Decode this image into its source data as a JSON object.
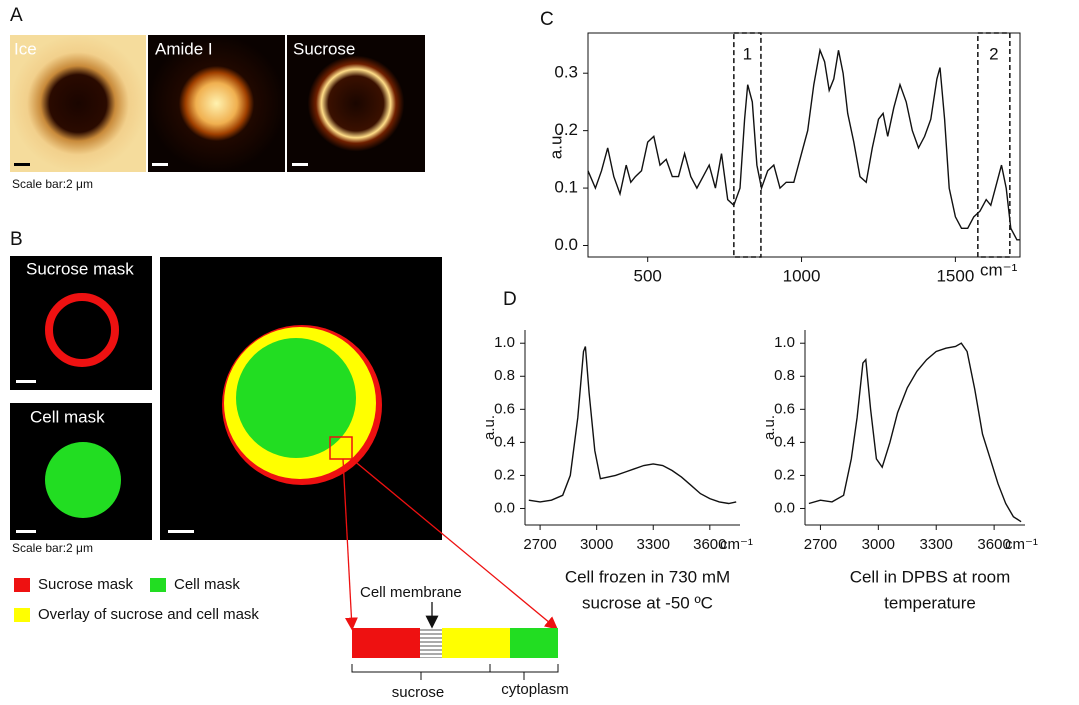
{
  "panel_labels": [
    "A",
    "B",
    "C",
    "D"
  ],
  "panel_a": {
    "images": [
      "Ice",
      "Amide I",
      "Sucrose"
    ],
    "scale_bar": "Scale bar:2 μm"
  },
  "panel_b": {
    "images": [
      "Sucrose mask",
      "Cell mask"
    ],
    "scale_bar": "Scale bar:2 μm",
    "legend": [
      {
        "name": "Sucrose mask",
        "color": "#ee1111"
      },
      {
        "name": "Cell mask",
        "color": "#22dd22"
      },
      {
        "name": "Overlay of sucrose and cell mask",
        "color": "#ffff00"
      }
    ],
    "strip_labels": {
      "membrane": "Cell membrane",
      "sucrose": "sucrose",
      "cytoplasm": "cytoplasm"
    }
  },
  "chart_data": [
    {
      "type": "line",
      "y_label": "a.u.",
      "x_label": "cm⁻¹",
      "color": "#111111",
      "x": [
        306,
        330,
        350,
        370,
        390,
        410,
        430,
        445,
        460,
        480,
        500,
        520,
        540,
        560,
        580,
        600,
        620,
        640,
        660,
        680,
        700,
        720,
        740,
        760,
        780,
        800,
        815,
        825,
        840,
        855,
        870,
        890,
        910,
        930,
        950,
        975,
        1000,
        1020,
        1040,
        1060,
        1075,
        1090,
        1105,
        1120,
        1135,
        1150,
        1170,
        1190,
        1210,
        1230,
        1250,
        1265,
        1280,
        1300,
        1320,
        1340,
        1360,
        1380,
        1400,
        1420,
        1440,
        1450,
        1465,
        1480,
        1500,
        1520,
        1540,
        1560,
        1580,
        1600,
        1615,
        1630,
        1650,
        1665,
        1680,
        1700,
        1710
      ],
      "values": [
        0.13,
        0.1,
        0.13,
        0.17,
        0.12,
        0.09,
        0.14,
        0.11,
        0.12,
        0.13,
        0.18,
        0.19,
        0.14,
        0.15,
        0.12,
        0.12,
        0.16,
        0.12,
        0.1,
        0.12,
        0.14,
        0.1,
        0.16,
        0.08,
        0.07,
        0.1,
        0.22,
        0.28,
        0.25,
        0.14,
        0.1,
        0.13,
        0.14,
        0.1,
        0.11,
        0.11,
        0.16,
        0.2,
        0.28,
        0.34,
        0.32,
        0.27,
        0.29,
        0.34,
        0.3,
        0.23,
        0.18,
        0.12,
        0.11,
        0.17,
        0.22,
        0.23,
        0.19,
        0.24,
        0.28,
        0.25,
        0.2,
        0.17,
        0.19,
        0.22,
        0.29,
        0.31,
        0.22,
        0.1,
        0.05,
        0.03,
        0.03,
        0.05,
        0.06,
        0.08,
        0.07,
        0.1,
        0.14,
        0.1,
        0.03,
        0.01,
        0.01
      ],
      "xlim": [
        306,
        1710
      ],
      "ylim": [
        -0.02,
        0.37
      ],
      "xticks": [
        500,
        1000,
        1500
      ],
      "yticks": [
        {
          "value": 0,
          "label": "0.0"
        },
        0.1,
        0.2,
        0.3
      ],
      "highlight_regions": [
        {
          "label": "1",
          "xrange": [
            780,
            868
          ]
        },
        {
          "label": "2",
          "xrange": [
            1573,
            1677
          ]
        }
      ]
    },
    {
      "type": "line",
      "y_label": "a.u.",
      "x_label": "cm⁻¹",
      "color": "#111111",
      "caption": [
        "Cell frozen in 730 mM",
        "sucrose at -50 ºC"
      ],
      "x": [
        2640,
        2700,
        2760,
        2820,
        2860,
        2900,
        2930,
        2940,
        2960,
        2990,
        3020,
        3060,
        3100,
        3150,
        3200,
        3250,
        3300,
        3350,
        3400,
        3450,
        3500,
        3550,
        3600,
        3650,
        3700,
        3740
      ],
      "values": [
        0.05,
        0.04,
        0.05,
        0.08,
        0.2,
        0.55,
        0.95,
        0.98,
        0.7,
        0.35,
        0.18,
        0.19,
        0.2,
        0.22,
        0.24,
        0.26,
        0.27,
        0.26,
        0.23,
        0.19,
        0.14,
        0.09,
        0.06,
        0.04,
        0.03,
        0.04
      ],
      "xlim": [
        2620,
        3760
      ],
      "ylim": [
        -0.1,
        1.08
      ],
      "xticks": [
        2700,
        3000,
        3300,
        3600
      ],
      "yticks": [
        {
          "value": 0,
          "label": "0.0"
        },
        0.2,
        0.4,
        0.6,
        0.8,
        {
          "value": 1,
          "label": "1.0"
        }
      ]
    },
    {
      "type": "line",
      "y_label": "a.u.",
      "x_label": "cm⁻¹",
      "color": "#111111",
      "caption": [
        "Cell in DPBS at room",
        "temperature"
      ],
      "x": [
        2640,
        2700,
        2760,
        2820,
        2860,
        2890,
        2920,
        2935,
        2960,
        2990,
        3020,
        3060,
        3100,
        3150,
        3200,
        3250,
        3300,
        3350,
        3400,
        3430,
        3460,
        3500,
        3540,
        3580,
        3620,
        3660,
        3700,
        3740
      ],
      "values": [
        0.03,
        0.05,
        0.04,
        0.08,
        0.3,
        0.55,
        0.88,
        0.9,
        0.6,
        0.3,
        0.25,
        0.4,
        0.58,
        0.73,
        0.83,
        0.9,
        0.95,
        0.97,
        0.98,
        1.0,
        0.95,
        0.72,
        0.45,
        0.3,
        0.15,
        0.03,
        -0.05,
        -0.08
      ],
      "xlim": [
        2620,
        3760
      ],
      "ylim": [
        -0.1,
        1.08
      ],
      "xticks": [
        2700,
        3000,
        3300,
        3600
      ],
      "yticks": [
        {
          "value": 0,
          "label": "0.0"
        },
        0.2,
        0.4,
        0.6,
        0.8,
        {
          "value": 1,
          "label": "1.0"
        }
      ]
    }
  ]
}
